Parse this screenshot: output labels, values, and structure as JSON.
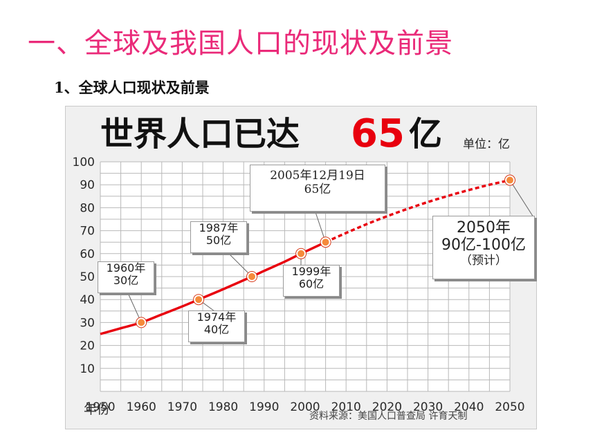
{
  "page": {
    "title": "一、全球及我国人口的现状及前景",
    "subtitle": "1、全球人口现状及前景"
  },
  "chart_data": {
    "type": "line",
    "title_main": "世界人口已达",
    "title_highlight": "65",
    "title_suffix": "亿",
    "unit_label": "单位：亿",
    "xlabel": "年份",
    "source": "资料来源：美国人口普查局 许育天制",
    "xlim": [
      1950,
      2050
    ],
    "ylim": [
      0,
      100
    ],
    "x_ticks": [
      1950,
      1960,
      1970,
      1980,
      1990,
      2000,
      2010,
      2020,
      2030,
      2040,
      2050
    ],
    "y_ticks": [
      10,
      20,
      30,
      40,
      50,
      60,
      70,
      80,
      90,
      100
    ],
    "grid": true,
    "actual": {
      "x": [
        1950,
        1955,
        1960,
        1965,
        1970,
        1974,
        1980,
        1987,
        1990,
        1995,
        1999,
        2005
      ],
      "y": [
        25,
        27.5,
        30,
        33.5,
        37,
        40,
        44.5,
        50,
        52.5,
        56.5,
        60,
        65
      ]
    },
    "projected": {
      "x": [
        2005,
        2010,
        2015,
        2020,
        2025,
        2030,
        2035,
        2040,
        2045,
        2050
      ],
      "y": [
        65,
        69,
        72.8,
        76.3,
        79.5,
        82.5,
        85.2,
        87.7,
        90,
        92
      ]
    },
    "markers": [
      {
        "x": 1960,
        "y": 30
      },
      {
        "x": 1974,
        "y": 40
      },
      {
        "x": 1987,
        "y": 50
      },
      {
        "x": 1999,
        "y": 60
      },
      {
        "x": 2005,
        "y": 65
      },
      {
        "x": 2050,
        "y": 92
      }
    ],
    "annotations": {
      "a1960": {
        "line1": "1960年",
        "line2": "30亿"
      },
      "a1974": {
        "line1": "1974年",
        "line2": "40亿"
      },
      "a1987": {
        "line1": "1987年",
        "line2": "50亿"
      },
      "a1999": {
        "line1": "1999年",
        "line2": "60亿"
      },
      "a2005": {
        "line1": "2005年12月19日",
        "line2": "65亿"
      },
      "a2050": {
        "line1": "2050年",
        "line2": "90亿-100亿",
        "line3": "（预计）"
      }
    },
    "colors": {
      "line": "#e8000e",
      "marker_fill": "#f58a3a",
      "marker_edge": "#d83a1a",
      "highlight": "#e8000e"
    }
  }
}
